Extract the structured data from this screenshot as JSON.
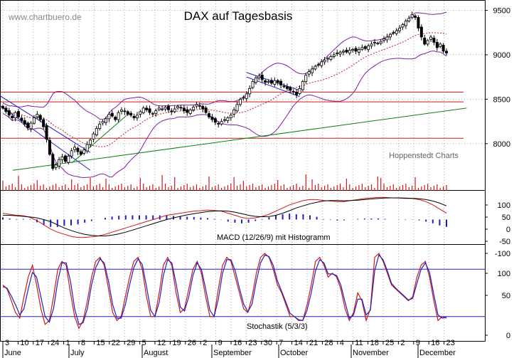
{
  "watermark": "www.chartbuero.de",
  "credit": "Hoppenstedt Charts",
  "chart_data": {
    "type": "candlestick",
    "title": "DAX auf Tagesbasis",
    "panels": {
      "price": {
        "ylim": [
          7550,
          9600
        ],
        "y_ticks": [
          "9500",
          "9000",
          "8500",
          "8000"
        ],
        "y_tick_values": [
          9500,
          9000,
          8500,
          8000
        ],
        "horizontal_lines": [
          {
            "value": 8580,
            "color": "#d01818"
          },
          {
            "value": 8470,
            "color": "#d01818"
          },
          {
            "value": 8060,
            "color": "#d01818"
          }
        ],
        "trendline": {
          "from": [
            0,
            7700
          ],
          "to": [
            143,
            8400
          ],
          "color": "#108010"
        },
        "channel_lines": [
          {
            "from": [
              -1,
              8540
            ],
            "to": [
              28,
              7900
            ],
            "color": "#2020c0"
          },
          {
            "from": [
              -1,
              8430
            ],
            "to": [
              28,
              7700
            ],
            "color": "#2020c0"
          },
          {
            "from": [
              78,
              8800
            ],
            "to": [
              95,
              8600
            ],
            "color": "#2020c0"
          },
          {
            "from": [
              78,
              8750
            ],
            "to": [
              95,
              8530
            ],
            "color": "#2020c0"
          },
          {
            "from": [
              22,
              7780
            ],
            "to": [
              40,
              8330
            ],
            "color": "#108010"
          }
        ],
        "close": [
          8400,
          8360,
          8320,
          8290,
          8350,
          8300,
          8260,
          8220,
          8180,
          8230,
          8290,
          8330,
          8270,
          8190,
          8050,
          7880,
          7720,
          7760,
          7820,
          7850,
          7800,
          7860,
          7920,
          7960,
          7910,
          7880,
          7930,
          7990,
          8040,
          8110,
          8170,
          8220,
          8250,
          8280,
          8330,
          8310,
          8270,
          8350,
          8380,
          8360,
          8330,
          8320,
          8290,
          8320,
          8360,
          8400,
          8380,
          8350,
          8340,
          8370,
          8400,
          8390,
          8410,
          8380,
          8360,
          8390,
          8420,
          8400,
          8370,
          8350,
          8380,
          8410,
          8440,
          8420,
          8390,
          8350,
          8300,
          8270,
          8240,
          8220,
          8250,
          8270,
          8290,
          8320,
          8380,
          8440,
          8500,
          8520,
          8560,
          8620,
          8700,
          8740,
          8760,
          8720,
          8690,
          8700,
          8680,
          8710,
          8690,
          8660,
          8640,
          8620,
          8600,
          8580,
          8550,
          8620,
          8700,
          8770,
          8810,
          8840,
          8870,
          8890,
          8920,
          8940,
          8960,
          8980,
          9000,
          9020,
          9030,
          9040,
          9030,
          9050,
          9060,
          9040,
          9060,
          9080,
          9070,
          9100,
          9120,
          9140,
          9130,
          9150,
          9180,
          9200,
          9230,
          9250,
          9270,
          9300,
          9340,
          9380,
          9410,
          9450,
          9420,
          9300,
          9200,
          9120,
          9160,
          9200,
          9140,
          9080,
          9120,
          9040,
          9020
        ]
      },
      "volume": {
        "color": "#d01818"
      },
      "macd": {
        "label": "MACD (12/26/9) mit Histogramm",
        "ylim": [
          -110,
          130
        ],
        "y_ticks": [
          "100",
          "50",
          "0",
          "-50",
          "-100"
        ],
        "y_tick_values": [
          100,
          50,
          0,
          -50,
          -100
        ],
        "series": [
          {
            "values": [
              30,
              25,
              20,
              18,
              10,
              -5,
              -25,
              -45,
              -60,
              -70,
              -80,
              -85,
              -85,
              -82,
              -78,
              -70,
              -60,
              -50,
              -40,
              -30,
              -20,
              -10,
              0,
              10,
              20,
              25,
              30,
              35,
              40,
              42,
              45,
              43,
              40,
              30,
              20,
              10,
              5,
              8,
              15,
              25,
              40,
              55,
              70,
              80,
              90,
              95,
              95,
              90,
              88,
              85,
              85,
              90,
              95,
              100,
              103,
              105,
              105,
              103,
              102,
              100,
              100,
              95,
              85,
              70,
              50,
              30
            ],
            "color": "#d01818"
          },
          {
            "values": [
              20,
              20,
              18,
              15,
              12,
              8,
              0,
              -10,
              -25,
              -40,
              -52,
              -62,
              -70,
              -75,
              -78,
              -78,
              -74,
              -68,
              -60,
              -50,
              -40,
              -30,
              -20,
              -10,
              0,
              8,
              15,
              22,
              28,
              33,
              38,
              40,
              41,
              40,
              35,
              28,
              20,
              15,
              13,
              14,
              20,
              30,
              42,
              55,
              65,
              75,
              82,
              88,
              90,
              90,
              89,
              90,
              92,
              95,
              98,
              100,
              102,
              103,
              103,
              102,
              101,
              99,
              95,
              88,
              78,
              65
            ],
            "color": "#000000"
          }
        ],
        "histogram": [
          10,
          5,
          2,
          3,
          -2,
          -13,
          -25,
          -35,
          -35,
          -30,
          -28,
          -23,
          -15,
          -7,
          0,
          8,
          14,
          18,
          20,
          20,
          20,
          20,
          20,
          20,
          20,
          17,
          15,
          13,
          12,
          9,
          7,
          3,
          -1,
          -10,
          -15,
          -18,
          -15,
          -7,
          2,
          11,
          20,
          25,
          28,
          25,
          25,
          20,
          13,
          2,
          -2,
          -5,
          -4,
          0,
          3,
          5,
          5,
          5,
          3,
          0,
          -1,
          -2,
          -1,
          -4,
          -10,
          -18,
          -28,
          -35
        ],
        "hist_color": "#2020c0"
      },
      "stochastic": {
        "label": "Stochastik (5/3/3)",
        "ylim": [
          -10,
          110
        ],
        "y_ticks": [
          "100",
          "50",
          "0"
        ],
        "y_tick_values": [
          100,
          50,
          0
        ],
        "reference_lines": [
          80,
          20
        ],
        "series": [
          {
            "values": [
              60,
              55,
              40,
              25,
              18,
              45,
              70,
              85,
              60,
              30,
              10,
              15,
              45,
              80,
              90,
              85,
              50,
              20,
              5,
              15,
              40,
              70,
              90,
              95,
              85,
              55,
              25,
              15,
              20,
              45,
              70,
              90,
              95,
              80,
              45,
              20,
              20,
              50,
              85,
              95,
              85,
              50,
              25,
              30,
              55,
              80,
              90,
              75,
              45,
              20,
              20,
              55,
              85,
              95,
              90,
              70,
              50,
              30,
              25,
              45,
              75,
              95,
              100,
              95,
              80,
              60,
              50,
              35,
              20,
              20,
              15,
              15,
              35,
              60,
              90,
              95,
              85,
              70,
              75,
              70,
              55,
              30,
              15,
              25,
              50,
              40,
              15,
              30,
              95,
              100,
              90,
              75,
              60,
              55,
              50,
              45,
              40,
              45,
              70,
              85,
              90,
              70,
              40,
              15,
              20,
              18
            ],
            "color": "#d01818"
          },
          {
            "values": [
              58,
              56,
              46,
              35,
              22,
              30,
              55,
              76,
              70,
              45,
              20,
              13,
              30,
              65,
              88,
              88,
              65,
              30,
              10,
              12,
              30,
              60,
              82,
              93,
              88,
              65,
              35,
              18,
              18,
              35,
              60,
              82,
              93,
              86,
              58,
              28,
              20,
              38,
              72,
              92,
              88,
              62,
              32,
              27,
              45,
              72,
              88,
              80,
              55,
              28,
              20,
              42,
              75,
              92,
              92,
              78,
              56,
              36,
              26,
              36,
              65,
              88,
              98,
              96,
              85,
              65,
              52,
              38,
              24,
              20,
              16,
              15,
              28,
              50,
              78,
              92,
              88,
              74,
              74,
              72,
              60,
              38,
              18,
              22,
              42,
              42,
              22,
              28,
              78,
              98,
              92,
              78,
              62,
              56,
              51,
              46,
              41,
              43,
              62,
              80,
              88,
              76,
              48,
              22,
              18,
              19
            ],
            "color": "#2020c0"
          }
        ]
      }
    },
    "x_axis": {
      "date_labels": [
        "3",
        "10",
        "17",
        "24",
        "1",
        "8",
        "15",
        "22",
        "29",
        "5",
        "12",
        "19",
        "26",
        "2",
        "9",
        "16",
        "23",
        "30",
        "7",
        "14",
        "21",
        "28",
        "4",
        "11",
        "18",
        "25",
        "2",
        "9",
        "16",
        "23"
      ],
      "months": [
        "June",
        "July",
        "August",
        "September",
        "October",
        "November",
        "December"
      ],
      "period": "June – December (daily)"
    }
  }
}
